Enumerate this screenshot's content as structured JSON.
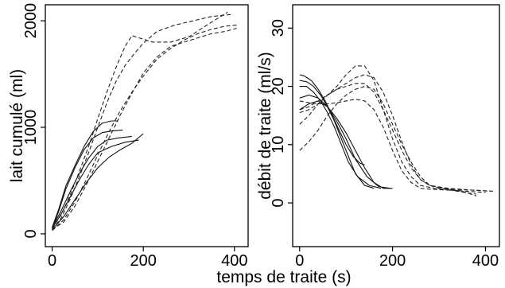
{
  "figure": {
    "shared_xlabel": "temps de traite (s)"
  },
  "chart_data": [
    {
      "type": "line",
      "title": "",
      "xlabel": "",
      "ylabel": "lait cumulé (ml)",
      "xlim": [
        -15,
        430
      ],
      "ylim": [
        -120,
        2150
      ],
      "xticks": [
        0,
        200,
        400
      ],
      "yticks": [
        0,
        1000,
        2000
      ],
      "grid": false,
      "line_colors": {
        "solid": "#111111",
        "dashed": "#222222"
      },
      "series": [
        {
          "style": "solid",
          "x": [
            0,
            15,
            30,
            50,
            70,
            90,
            110,
            130,
            145
          ],
          "y": [
            60,
            240,
            450,
            640,
            820,
            960,
            1040,
            1060,
            1060
          ]
        },
        {
          "style": "solid",
          "x": [
            0,
            15,
            30,
            50,
            70,
            90,
            110,
            130,
            155
          ],
          "y": [
            50,
            220,
            420,
            620,
            790,
            900,
            950,
            965,
            975
          ]
        },
        {
          "style": "solid",
          "x": [
            0,
            20,
            40,
            60,
            80,
            100,
            120,
            145,
            175
          ],
          "y": [
            60,
            220,
            400,
            570,
            710,
            820,
            880,
            900,
            915
          ]
        },
        {
          "style": "solid",
          "x": [
            0,
            20,
            40,
            60,
            80,
            100,
            130,
            160,
            190
          ],
          "y": [
            50,
            190,
            350,
            510,
            650,
            760,
            820,
            860,
            880
          ]
        },
        {
          "style": "solid",
          "x": [
            0,
            25,
            50,
            75,
            100,
            125,
            150,
            175,
            200
          ],
          "y": [
            40,
            160,
            320,
            480,
            620,
            720,
            790,
            850,
            940
          ]
        },
        {
          "style": "dashed",
          "x": [
            0,
            20,
            40,
            60,
            80,
            100,
            120,
            140,
            160,
            175,
            190,
            220,
            260,
            300,
            340,
            385
          ],
          "y": [
            50,
            180,
            370,
            590,
            820,
            1080,
            1330,
            1560,
            1760,
            1860,
            1840,
            1800,
            1800,
            1850,
            1960,
            2080
          ]
        },
        {
          "style": "dashed",
          "x": [
            0,
            20,
            40,
            60,
            80,
            100,
            120,
            140,
            160,
            180,
            200,
            230,
            270,
            310,
            350,
            395
          ],
          "y": [
            40,
            150,
            330,
            540,
            760,
            1000,
            1230,
            1430,
            1580,
            1690,
            1790,
            1900,
            1960,
            2000,
            2040,
            2060
          ]
        },
        {
          "style": "dashed",
          "x": [
            0,
            25,
            50,
            75,
            100,
            125,
            150,
            175,
            200,
            230,
            260,
            290,
            320,
            350,
            380,
            410
          ],
          "y": [
            30,
            130,
            300,
            510,
            740,
            960,
            1160,
            1330,
            1480,
            1640,
            1740,
            1820,
            1880,
            1920,
            1950,
            1960
          ]
        },
        {
          "style": "dashed",
          "x": [
            0,
            25,
            50,
            75,
            100,
            125,
            150,
            175,
            200,
            230,
            260,
            290,
            320,
            350,
            380,
            405
          ],
          "y": [
            40,
            110,
            260,
            460,
            680,
            900,
            1120,
            1320,
            1510,
            1660,
            1760,
            1800,
            1840,
            1880,
            1900,
            1930
          ]
        }
      ]
    },
    {
      "type": "line",
      "title": "",
      "xlabel": "",
      "ylabel": "débit de traite (ml/s)",
      "xlim": [
        -15,
        430
      ],
      "ylim": [
        -7.5,
        34
      ],
      "xticks": [
        0,
        200,
        400
      ],
      "yticks": [
        0,
        10,
        20,
        30
      ],
      "grid": false,
      "line_colors": {
        "solid": "#111111",
        "dashed": "#222222"
      },
      "series": [
        {
          "style": "solid",
          "x": [
            0,
            10,
            25,
            40,
            55,
            70,
            85,
            100,
            115,
            130,
            140
          ],
          "y": [
            22,
            21.8,
            21,
            19.5,
            17.5,
            15,
            12.5,
            10,
            8,
            6.8,
            6.5
          ]
        },
        {
          "style": "solid",
          "x": [
            0,
            15,
            30,
            45,
            60,
            75,
            90,
            105,
            120,
            140,
            160
          ],
          "y": [
            21,
            20.8,
            20,
            18.5,
            16.5,
            14,
            11,
            8,
            5,
            3,
            2.5
          ]
        },
        {
          "style": "solid",
          "x": [
            0,
            15,
            30,
            45,
            60,
            75,
            90,
            105,
            125,
            150,
            175
          ],
          "y": [
            20,
            20,
            19,
            17.5,
            15.5,
            13,
            10,
            7,
            4.5,
            3,
            2.5
          ]
        },
        {
          "style": "solid",
          "x": [
            0,
            20,
            40,
            60,
            80,
            100,
            120,
            140,
            160,
            180,
            200
          ],
          "y": [
            16,
            17,
            17.5,
            16.5,
            14.5,
            12,
            9,
            6,
            3.5,
            2.5,
            2.5
          ]
        },
        {
          "style": "solid",
          "x": [
            0,
            20,
            40,
            60,
            80,
            100,
            120,
            145,
            170,
            195
          ],
          "y": [
            18,
            18.5,
            18,
            16.5,
            14,
            11,
            7.5,
            4.5,
            2.8,
            2.5
          ]
        },
        {
          "style": "dashed",
          "x": [
            0,
            20,
            40,
            60,
            80,
            100,
            120,
            140,
            160,
            180,
            200,
            220,
            240,
            260,
            290,
            320,
            360,
            400
          ],
          "y": [
            17.5,
            17.2,
            17,
            17,
            17.2,
            17.5,
            17.8,
            17.5,
            16,
            13,
            9,
            5.5,
            3.5,
            2.5,
            2.3,
            2.2,
            2.0,
            1.8
          ]
        },
        {
          "style": "dashed",
          "x": [
            0,
            20,
            40,
            60,
            80,
            100,
            120,
            140,
            160,
            180,
            200,
            220,
            240,
            260,
            290,
            330,
            370,
            410
          ],
          "y": [
            15.5,
            16,
            17,
            18.5,
            20,
            22,
            23.5,
            23.5,
            21,
            16,
            11,
            7,
            4.5,
            3,
            2.5,
            2.3,
            2.2,
            2.0
          ]
        },
        {
          "style": "dashed",
          "x": [
            0,
            20,
            40,
            60,
            80,
            100,
            120,
            140,
            160,
            180,
            200,
            220,
            240,
            260,
            280,
            300,
            340,
            380
          ],
          "y": [
            13.5,
            15,
            17,
            18.5,
            19.5,
            20,
            20.5,
            20.5,
            19,
            16,
            12.5,
            9,
            6,
            4,
            3,
            2.5,
            2.0,
            1.5
          ]
        },
        {
          "style": "dashed",
          "x": [
            0,
            20,
            40,
            60,
            80,
            100,
            120,
            140,
            160,
            180,
            200,
            220,
            240,
            260,
            280,
            310,
            350,
            380
          ],
          "y": [
            9,
            10.5,
            12.5,
            15,
            17,
            18.5,
            19.5,
            20,
            19.5,
            17,
            13.5,
            10,
            7,
            4.5,
            3,
            2.5,
            2,
            1.2
          ]
        },
        {
          "style": "dashed",
          "x": [
            0,
            20,
            40,
            60,
            80,
            100,
            120,
            140,
            160,
            180,
            200,
            220,
            240,
            260,
            280,
            320,
            370,
            420
          ],
          "y": [
            16,
            16.5,
            17.5,
            18.5,
            19.5,
            20.5,
            21.5,
            22,
            21.5,
            19,
            15,
            10.5,
            6.5,
            4,
            3,
            2.5,
            2.2,
            2.0
          ]
        }
      ]
    }
  ]
}
